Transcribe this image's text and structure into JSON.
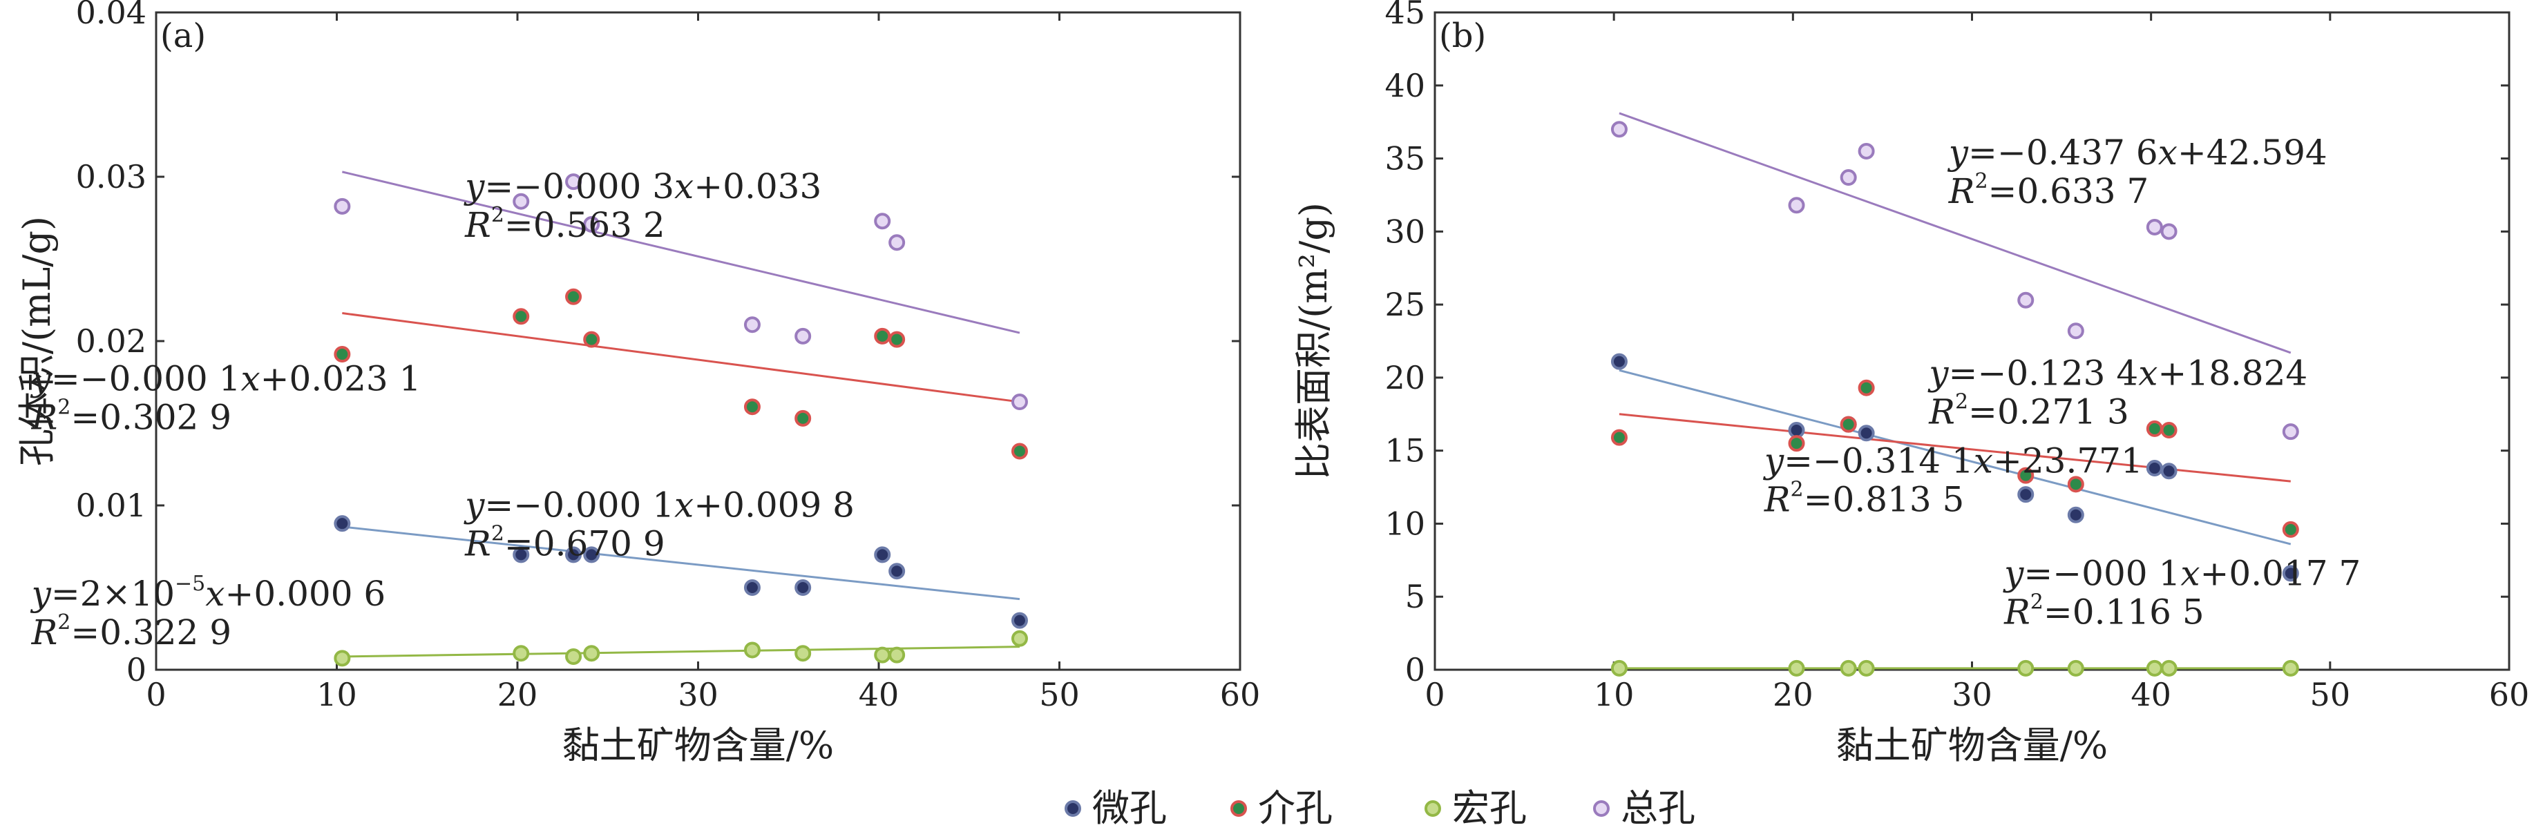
{
  "colors": {
    "micro": "#2b3566",
    "meso": "#2e8a4a",
    "macro": "#c6dc8c",
    "total": "#c9b2e2",
    "micro_line": "#7b9bc4",
    "meso_line": "#d9534f",
    "macro_line": "#93b846",
    "total_line": "#9a7bbd"
  },
  "legend": [
    {
      "key": "micro",
      "label": "微孔",
      "fill": "#2b3566",
      "edge": "#6b7aa8"
    },
    {
      "key": "meso",
      "label": "介孔",
      "fill": "#2e8a4a",
      "edge": "#d9534f"
    },
    {
      "key": "macro",
      "label": "宏孔",
      "fill": "#c6dc8c",
      "edge": "#93b846"
    },
    {
      "key": "total",
      "label": "总孔",
      "fill": "#e6d9f3",
      "edge": "#9a7bbd"
    }
  ],
  "chart_data": [
    {
      "type": "scatter",
      "panel_label": "(a)",
      "xlabel": "黏土矿物含量/%",
      "ylabel": "孔体积/(mL/g)",
      "xlim": [
        0,
        60
      ],
      "ylim": [
        0,
        0.04
      ],
      "xticks": [
        "0",
        "10",
        "20",
        "30",
        "40",
        "50",
        "60"
      ],
      "yticks": [
        "0",
        "0.01",
        "0.02",
        "0.03",
        "0.04"
      ],
      "grid": false,
      "series": [
        {
          "name": "微孔",
          "key": "micro",
          "x": [
            10.3,
            20.2,
            23.1,
            24.1,
            33.0,
            35.8,
            40.2,
            41.0,
            47.8
          ],
          "y": [
            0.0089,
            0.007,
            0.007,
            0.007,
            0.005,
            0.005,
            0.007,
            0.006,
            0.003
          ],
          "trend": [
            [
              10.3,
              0.0087
            ],
            [
              47.8,
              0.0043
            ]
          ]
        },
        {
          "name": "介孔",
          "key": "meso",
          "x": [
            10.3,
            20.2,
            23.1,
            24.1,
            33.0,
            35.8,
            40.2,
            41.0,
            47.8
          ],
          "y": [
            0.0192,
            0.0215,
            0.0227,
            0.0201,
            0.016,
            0.0153,
            0.0203,
            0.0201,
            0.0133
          ],
          "trend": [
            [
              10.3,
              0.0217
            ],
            [
              47.8,
              0.0163
            ]
          ]
        },
        {
          "name": "宏孔",
          "key": "macro",
          "x": [
            10.3,
            20.2,
            23.1,
            24.1,
            33.0,
            35.8,
            40.2,
            41.0,
            47.8
          ],
          "y": [
            0.0007,
            0.001,
            0.0008,
            0.001,
            0.0012,
            0.001,
            0.0009,
            0.0009,
            0.0019
          ],
          "trend": [
            [
              10.3,
              0.0008
            ],
            [
              47.8,
              0.0014
            ]
          ]
        },
        {
          "name": "总孔",
          "key": "total",
          "x": [
            10.3,
            20.2,
            23.1,
            24.1,
            33.0,
            35.8,
            40.2,
            41.0,
            47.8
          ],
          "y": [
            0.0282,
            0.0285,
            0.0297,
            0.0271,
            0.021,
            0.0203,
            0.0273,
            0.026,
            0.0163
          ],
          "trend": [
            [
              10.3,
              0.0303
            ],
            [
              47.8,
              0.0205
            ]
          ]
        }
      ],
      "annotations": [
        {
          "eq_pre": "",
          "eq_var": "y",
          "eq_rest": "=−0.000 3",
          "eq_x": "x",
          "eq_tail": "+0.033",
          "eq_sup": "",
          "eq_after": "",
          "r2": "=0.563 2",
          "at": [
            17.1,
            0.0287
          ]
        },
        {
          "eq_pre": "",
          "eq_var": "y",
          "eq_rest": "=−0.000 1",
          "eq_x": "x",
          "eq_tail": "+0.023 1",
          "eq_sup": "",
          "eq_after": "",
          "r2": "=0.302 9",
          "at": [
            -6.9,
            0.017
          ]
        },
        {
          "eq_pre": "",
          "eq_var": "y",
          "eq_rest": "=−0.000 1",
          "eq_x": "x",
          "eq_tail": "+0.009 8",
          "eq_sup": "",
          "eq_after": "",
          "r2": "=0.670 9",
          "at": [
            17.1,
            0.0093
          ]
        },
        {
          "eq_pre": "",
          "eq_var": "y",
          "eq_rest": "=2×10",
          "eq_x": "x",
          "eq_tail": "+0.000 6",
          "eq_sup": "−5",
          "eq_after": "",
          "r2": "=0.322 9",
          "at": [
            -6.9,
            0.0039
          ]
        }
      ]
    },
    {
      "type": "scatter",
      "panel_label": "(b)",
      "xlabel": "黏土矿物含量/%",
      "ylabel": "比表面积/(m²/g)",
      "xlim": [
        0,
        60
      ],
      "ylim": [
        0,
        45
      ],
      "xticks": [
        "0",
        "10",
        "20",
        "30",
        "40",
        "50",
        "60"
      ],
      "yticks": [
        "0",
        "5",
        "10",
        "15",
        "20",
        "25",
        "30",
        "35",
        "40",
        "45"
      ],
      "grid": false,
      "series": [
        {
          "name": "微孔",
          "key": "micro",
          "x": [
            10.3,
            20.2,
            23.1,
            24.1,
            33.0,
            35.8,
            40.2,
            41.0,
            47.8
          ],
          "y": [
            21.1,
            16.4,
            16.8,
            16.2,
            12.0,
            10.6,
            13.8,
            13.6,
            6.6
          ],
          "trend": [
            [
              10.3,
              20.5
            ],
            [
              47.8,
              8.6
            ]
          ]
        },
        {
          "name": "介孔",
          "key": "meso",
          "x": [
            10.3,
            20.2,
            23.1,
            24.1,
            33.0,
            35.8,
            40.2,
            41.0,
            47.8
          ],
          "y": [
            15.9,
            15.5,
            16.8,
            19.3,
            13.3,
            12.7,
            16.5,
            16.4,
            9.6
          ],
          "trend": [
            [
              10.3,
              17.5
            ],
            [
              47.8,
              12.9
            ]
          ]
        },
        {
          "name": "宏孔",
          "key": "macro",
          "x": [
            10.3,
            20.2,
            23.1,
            24.1,
            33.0,
            35.8,
            40.2,
            41.0,
            47.8
          ],
          "y": [
            0.1,
            0.1,
            0.1,
            0.1,
            0.1,
            0.1,
            0.1,
            0.1,
            0.1
          ],
          "trend": [
            [
              10.3,
              0.1
            ],
            [
              47.8,
              0.1
            ]
          ]
        },
        {
          "name": "总孔",
          "key": "total",
          "x": [
            10.3,
            20.2,
            23.1,
            24.1,
            33.0,
            35.8,
            40.2,
            41.0,
            47.8
          ],
          "y": [
            37.0,
            31.8,
            33.7,
            35.5,
            25.3,
            23.2,
            30.3,
            30.0,
            16.3
          ],
          "trend": [
            [
              10.3,
              38.1
            ],
            [
              47.8,
              21.7
            ]
          ]
        }
      ],
      "annotations": [
        {
          "eq_pre": "",
          "eq_var": "y",
          "eq_rest": "=−0.437 6",
          "eq_x": "x",
          "eq_tail": "+42.594",
          "eq_sup": "",
          "eq_after": "",
          "r2": "=0.633 7",
          "at": [
            28.7,
            34.6
          ]
        },
        {
          "eq_pre": "",
          "eq_var": "y",
          "eq_rest": "=−0.123 4",
          "eq_x": "x",
          "eq_tail": "+18.824",
          "eq_sup": "",
          "eq_after": "",
          "r2": "=0.271 3",
          "at": [
            27.6,
            19.5
          ]
        },
        {
          "eq_pre": "",
          "eq_var": "y",
          "eq_rest": "=−0.314 1",
          "eq_x": "x",
          "eq_tail": "+23.771",
          "eq_sup": "",
          "eq_after": "",
          "r2": "=0.813 5",
          "at": [
            18.4,
            13.5
          ]
        },
        {
          "eq_pre": "",
          "eq_var": "y",
          "eq_rest": "=−000 1",
          "eq_x": "x",
          "eq_tail": "+0.017 7",
          "eq_sup": "",
          "eq_after": "",
          "r2": "=0.116 5",
          "at": [
            31.8,
            5.8
          ]
        }
      ]
    }
  ]
}
